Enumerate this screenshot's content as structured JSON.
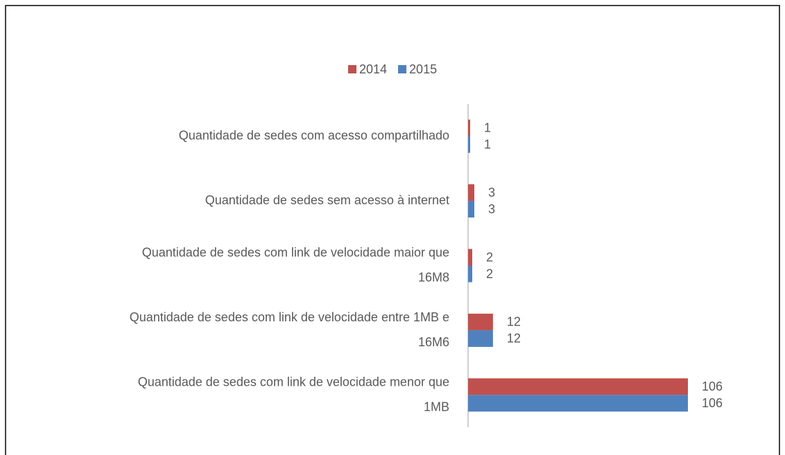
{
  "chart_data": {
    "type": "bar",
    "orientation": "horizontal",
    "categories": [
      "Quantidade de sedes com acesso compartilhado",
      "Quantidade de sedes sem acesso à internet",
      "Quantidade de sedes com link de velocidade maior que 16M8",
      "Quantidade de sedes com link de velocidade entre 1MB e 16M6",
      "Quantidade de sedes com link de velocidade menor que 1MB"
    ],
    "series": [
      {
        "name": "2014",
        "color": "#c0504d",
        "values": [
          1,
          3,
          2,
          12,
          106
        ]
      },
      {
        "name": "2015",
        "color": "#4f81bd",
        "values": [
          1,
          3,
          2,
          12,
          106
        ]
      }
    ],
    "legend": "top"
  }
}
